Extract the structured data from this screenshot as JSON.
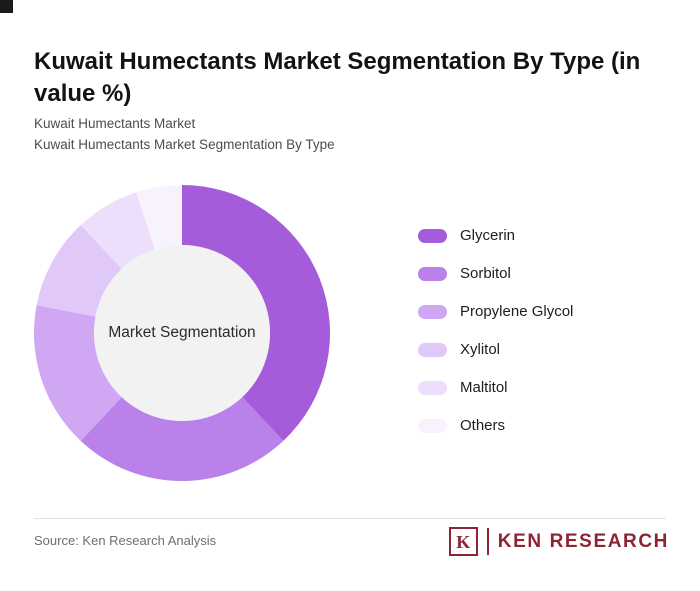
{
  "page": {
    "title": "Kuwait Humectants Market Segmentation By Type (in value %)",
    "subtitle1": "Kuwait Humectants Market",
    "subtitle2": "Kuwait Humectants Market Segmentation By Type",
    "source": "Source: Ken Research Analysis",
    "brand": {
      "logo_letter": "K",
      "name": "KEN RESEARCH",
      "color": "#8e2433"
    }
  },
  "chart_data": {
    "type": "pie",
    "donut": true,
    "title": "Kuwait Humectants Market Segmentation By Type (in value %)",
    "center_label": "Market Segmentation",
    "legend_position": "right",
    "categories": [
      "Glycerin",
      "Sorbitol",
      "Propylene Glycol",
      "Xylitol",
      "Maltitol",
      "Others"
    ],
    "values": [
      38,
      24,
      16,
      10,
      7,
      5
    ],
    "values_estimated_from_arc_angles": true,
    "colors": [
      "#a55cda",
      "#b981e9",
      "#cfa7f3",
      "#e0c8f8",
      "#eddffb",
      "#f8f1fe"
    ],
    "center_color": "#f2f2f3",
    "start_angle_deg": -90,
    "direction": "clockwise"
  }
}
